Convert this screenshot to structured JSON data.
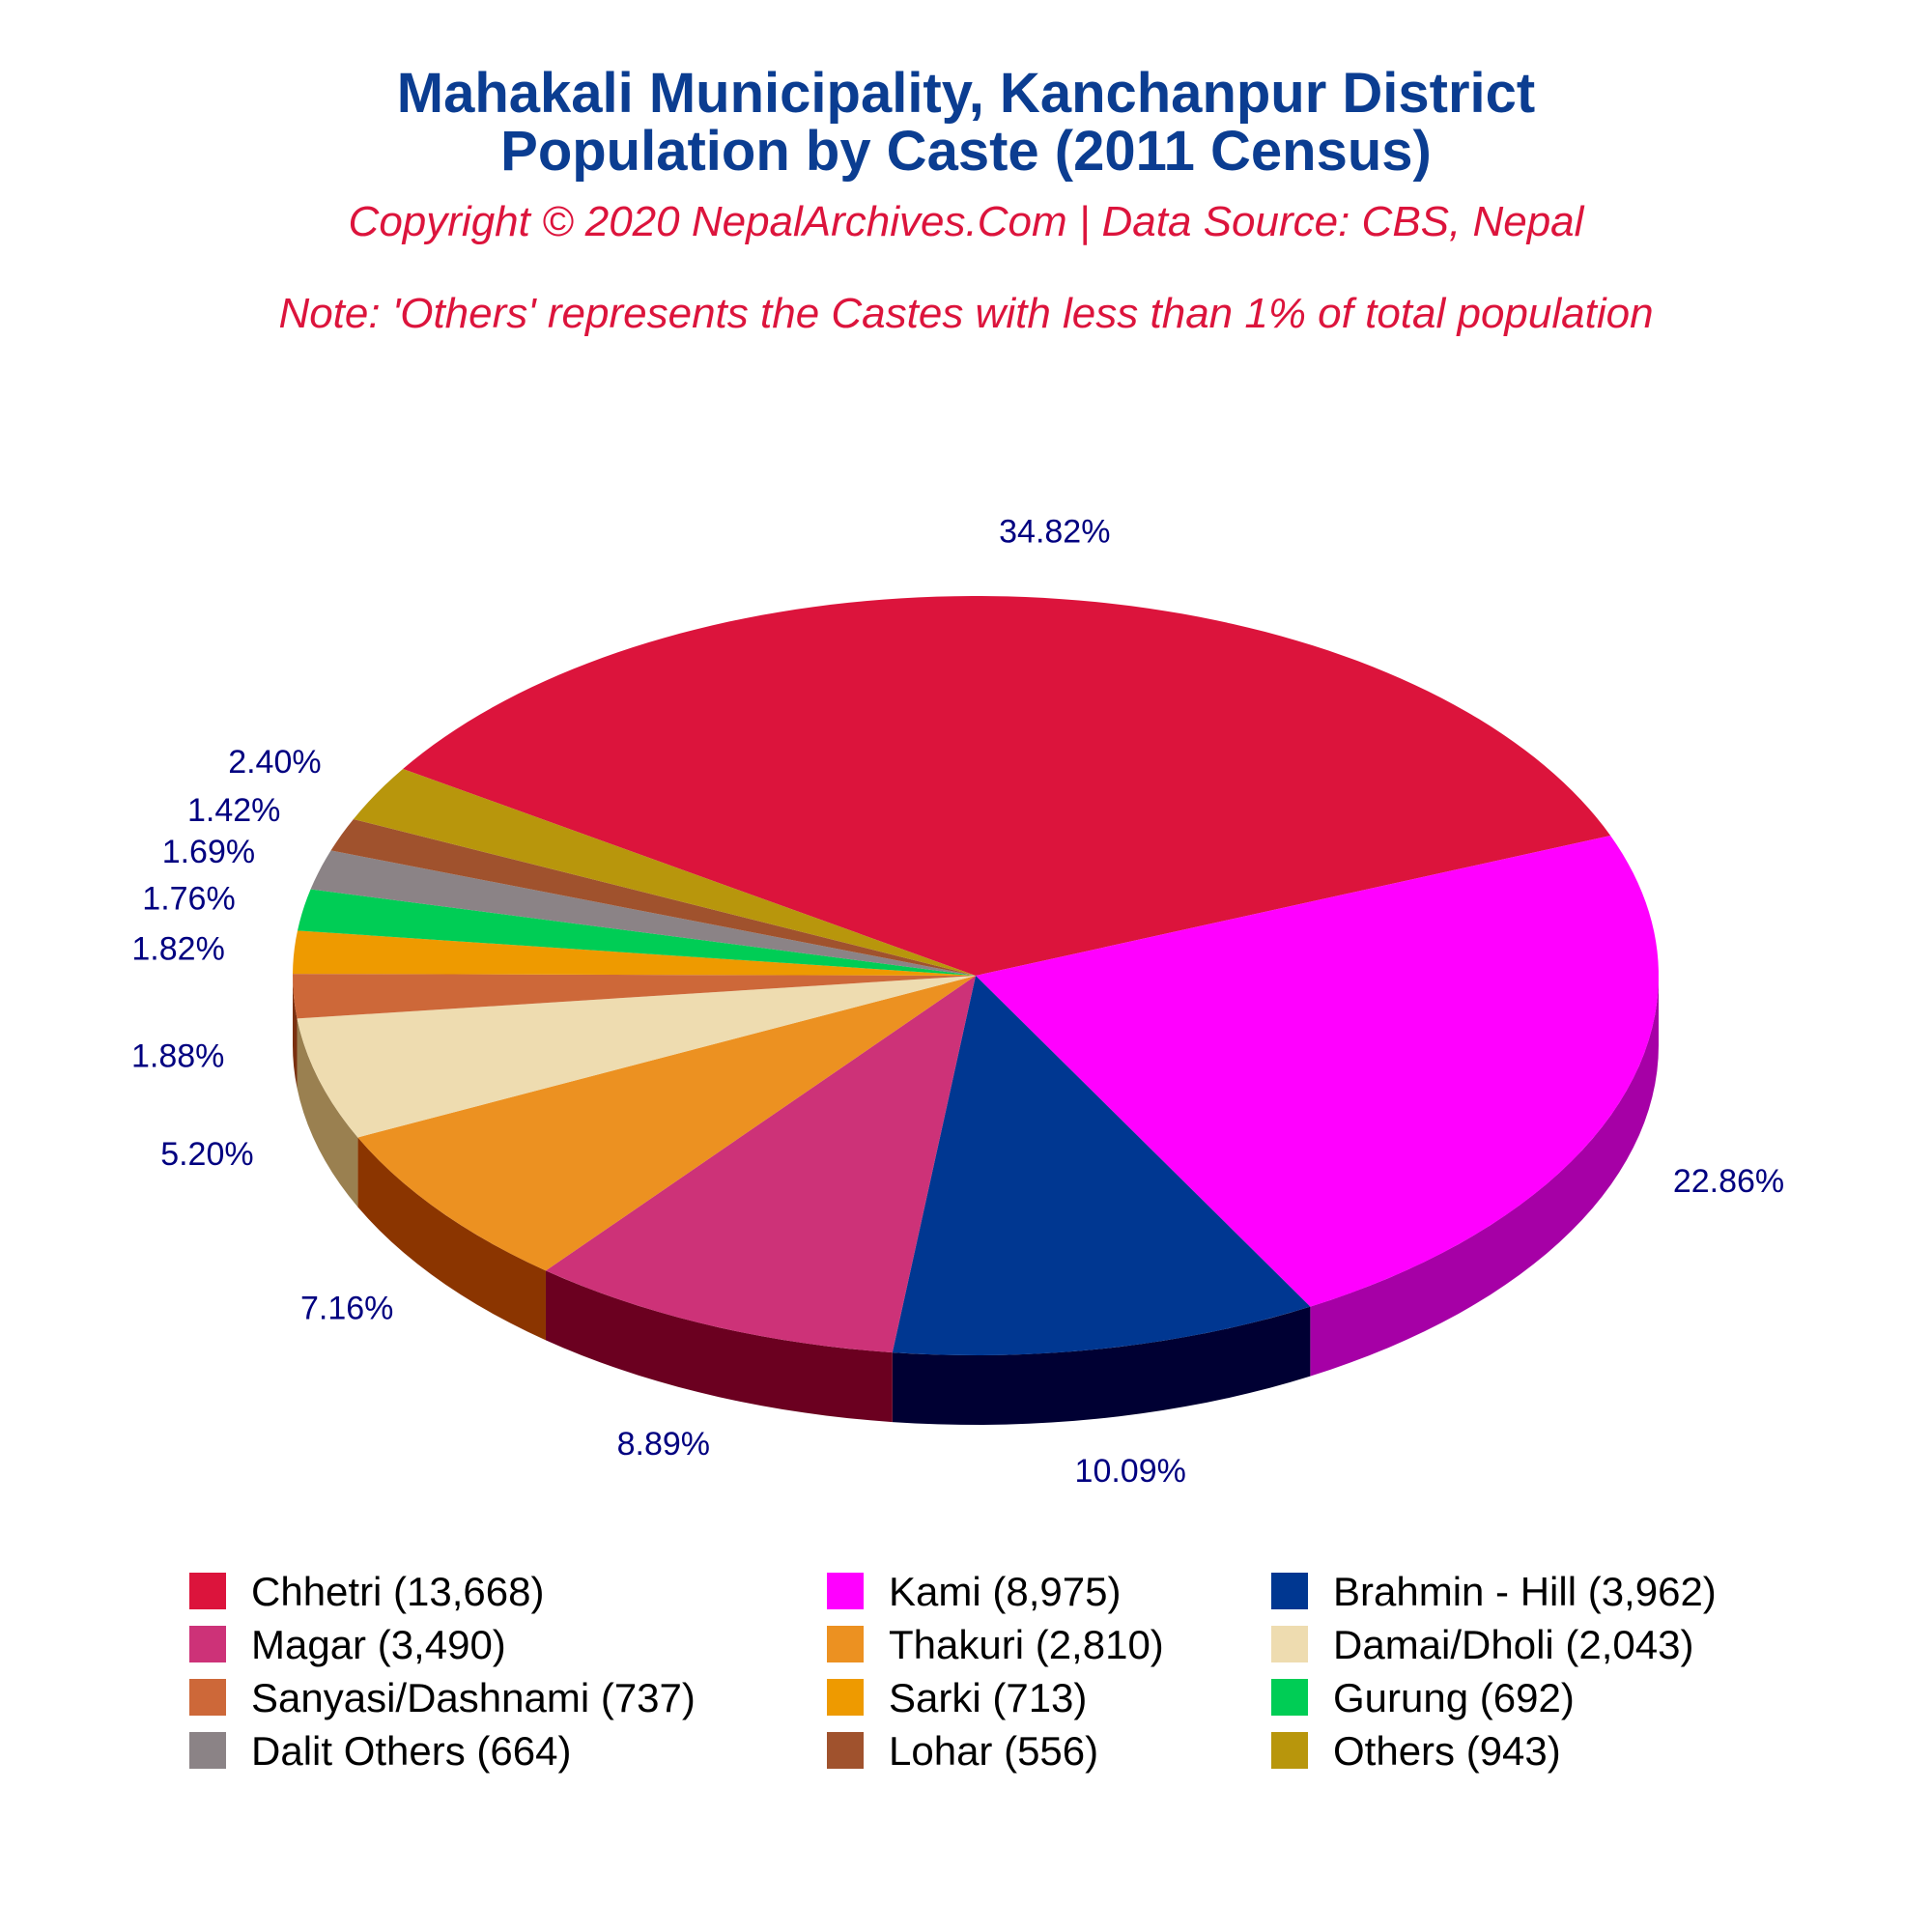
{
  "chart_data": {
    "type": "pie",
    "title_line1": "Mahakali Municipality, Kanchanpur District",
    "title_line2": "Population by Caste (2011 Census)",
    "copyright": "Copyright © 2020 NepalArchives.Com | Data Source: CBS, Nepal",
    "note": "Note: 'Others' represents the Castes with less than 1% of total population",
    "legend_position": "bottom",
    "slices": [
      {
        "label": "Chhetri (13,668)",
        "value": 13668,
        "percent_label": "34.82%",
        "color": "#dc143c",
        "side_color": "#8b0a1f"
      },
      {
        "label": "Kami (8,975)",
        "value": 8975,
        "percent_label": "22.86%",
        "color": "#ff00ff",
        "side_color": "#a600a6"
      },
      {
        "label": "Brahmin - Hill (3,962)",
        "value": 3962,
        "percent_label": "10.09%",
        "color": "#003791",
        "side_color": "#000033"
      },
      {
        "label": "Magar (3,490)",
        "value": 3490,
        "percent_label": "8.89%",
        "color": "#cd3278",
        "side_color": "#6b0020"
      },
      {
        "label": "Thakuri (2,810)",
        "value": 2810,
        "percent_label": "7.16%",
        "color": "#ec9121",
        "side_color": "#8b3500"
      },
      {
        "label": "Damai/Dholi (2,043)",
        "value": 2043,
        "percent_label": "5.20%",
        "color": "#eedcb0",
        "side_color": "#9a8050"
      },
      {
        "label": "Sanyasi/Dashnami (737)",
        "value": 737,
        "percent_label": "1.88%",
        "color": "#cd6839",
        "side_color": "#7a3010"
      },
      {
        "label": "Sarki (713)",
        "value": 713,
        "percent_label": "1.82%",
        "color": "#ee9a00",
        "side_color": "#8a5800"
      },
      {
        "label": "Gurung (692)",
        "value": 692,
        "percent_label": "1.76%",
        "color": "#00cd55",
        "side_color": "#007a30"
      },
      {
        "label": "Dalit Others (664)",
        "value": 664,
        "percent_label": "1.69%",
        "color": "#8b8386",
        "side_color": "#4a4547"
      },
      {
        "label": "Lohar (556)",
        "value": 556,
        "percent_label": "1.42%",
        "color": "#a0522d",
        "side_color": "#5a2a10"
      },
      {
        "label": "Others (943)",
        "value": 943,
        "percent_label": "2.40%",
        "color": "#b8960c",
        "side_color": "#6a5505"
      }
    ]
  }
}
